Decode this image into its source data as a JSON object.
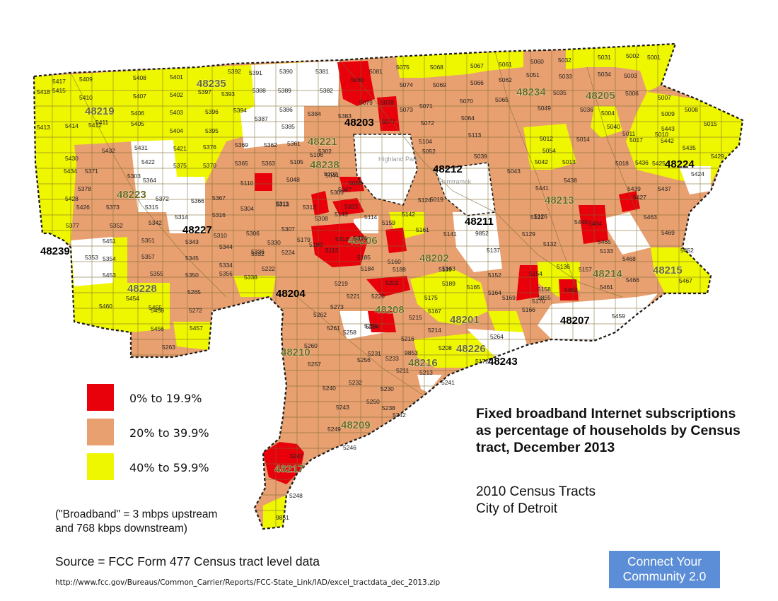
{
  "title": "Fixed broadband Internet subscriptions as percentage of households by Census tract, December 2013",
  "subtitle_lines": [
    "2010 Census Tracts",
    "City of Detroit"
  ],
  "legend": [
    {
      "label": "0% to 19.9%",
      "color": "#e8000b"
    },
    {
      "label": "20% to 39.9%",
      "color": "#e8a070"
    },
    {
      "label": "40% to 59.9%",
      "color": "#eef700"
    }
  ],
  "note_lines": [
    "(\"Broadband\" = 3 mbps upstream",
    "and 768 kbps downstream)"
  ],
  "source": "Source = FCC Form 477 Census tract level data",
  "url": "http://www.fcc.gov/Bureaus/Common_Carrier/Reports/FCC-State_Link/IAD/excel_tractdata_dec_2013.zip",
  "badge_lines": [
    "Connect Your",
    "Community 2.0"
  ],
  "colors": {
    "no_data": "#ffffff",
    "border": "#1a1a1a",
    "tract_line": "#7a6a30",
    "zip_label": "#6b6b1e"
  },
  "place_labels": [
    "Highland Park",
    "Hamtramck"
  ],
  "zip_codes": [
    "48235",
    "48219",
    "48234",
    "48205",
    "48203",
    "48221",
    "48238",
    "48212",
    "48223",
    "48227",
    "48213",
    "48224",
    "48211",
    "48239",
    "48206",
    "48202",
    "48214",
    "48215",
    "48228",
    "48204",
    "48208",
    "48201",
    "48207",
    "48210",
    "48226",
    "48216",
    "48243",
    "48209",
    "48217"
  ],
  "tracts": [
    "5409",
    "5408",
    "5401",
    "5392",
    "5391",
    "5390",
    "5381",
    "5080",
    "5081",
    "5075",
    "5068",
    "5067",
    "5061",
    "5060",
    "5032",
    "5031",
    "5002",
    "5001",
    "5417",
    "5418",
    "5415",
    "5410",
    "5407",
    "5402",
    "5397",
    "5393",
    "5388",
    "5389",
    "5382",
    "5079",
    "5074",
    "5069",
    "5066",
    "5062",
    "5051",
    "5033",
    "5003",
    "5413",
    "5414",
    "5412",
    "5411",
    "5406",
    "5403",
    "5396",
    "5394",
    "5386",
    "5384",
    "5383",
    "5078",
    "5073",
    "5071",
    "5070",
    "5065",
    "5035",
    "5034",
    "5006",
    "5007",
    "5008",
    "5405",
    "5404",
    "5395",
    "5387",
    "5385",
    "5077",
    "5072",
    "5064",
    "5049",
    "5036",
    "5004",
    "5009",
    "5015",
    "5431",
    "5432",
    "5421",
    "5376",
    "5369",
    "5362",
    "5361",
    "5302",
    "5104",
    "5113",
    "5054",
    "5040",
    "5011",
    "5010",
    "5443",
    "5430",
    "5422",
    "5375",
    "5370",
    "5365",
    "5363",
    "5105",
    "5106",
    "5052",
    "5039",
    "5012",
    "5014",
    "5017",
    "5442",
    "5435",
    "5429",
    "5434",
    "5371",
    "5364",
    "5303",
    "5110",
    "5048",
    "5044",
    "5043",
    "5042",
    "5013",
    "5018",
    "5436",
    "5425",
    "5424",
    "5378",
    "5372",
    "5366",
    "5367",
    "5304",
    "5311",
    "5312",
    "5107",
    "5047",
    "5055",
    "5019",
    "5441",
    "5438",
    "5437",
    "5428",
    "5426",
    "5373",
    "5315",
    "5314",
    "5316",
    "5313",
    "5305",
    "5323",
    "5114",
    "5143",
    "5142",
    "5124",
    "5121",
    "5440",
    "5439",
    "5427",
    "5377",
    "5352",
    "5342",
    "5310",
    "5306",
    "5307",
    "5308",
    "5312",
    "5324",
    "5112",
    "5159",
    "5161",
    "5141",
    "5126",
    "5129",
    "5464",
    "5463",
    "5469",
    "5451",
    "5353",
    "5351",
    "5343",
    "5344",
    "5332",
    "5330",
    "5179",
    "5185",
    "5160",
    "5139",
    "5137",
    "5132",
    "5465",
    "5468",
    "5452",
    "5354",
    "5357",
    "5345",
    "5334",
    "5336",
    "5224",
    "5180",
    "5184",
    "5188",
    "5163",
    "5152",
    "5154",
    "5136",
    "5157",
    "5133",
    "5466",
    "5467",
    "5453",
    "5355",
    "5350",
    "5356",
    "5338",
    "5222",
    "5219",
    "5202",
    "5175",
    "5189",
    "5165",
    "5164",
    "5158",
    "5462",
    "5461",
    "5460",
    "5454",
    "5455",
    "5265",
    "5272",
    "5273",
    "5221",
    "5220",
    "5215",
    "5167",
    "5169",
    "5170",
    "5166",
    "9855",
    "5459",
    "5458",
    "5456",
    "5457",
    "5263",
    "5262",
    "5261",
    "5258",
    "5254",
    "5255",
    "5216",
    "5214",
    "5208",
    "5172",
    "5264",
    "5260",
    "5257",
    "5256",
    "5231",
    "5233",
    "5211",
    "5213",
    "9853",
    "5241",
    "5240",
    "5232",
    "5230",
    "5238",
    "5250",
    "5242",
    "5243",
    "5249",
    "5246",
    "5247",
    "5248",
    "9851",
    "9852"
  ]
}
